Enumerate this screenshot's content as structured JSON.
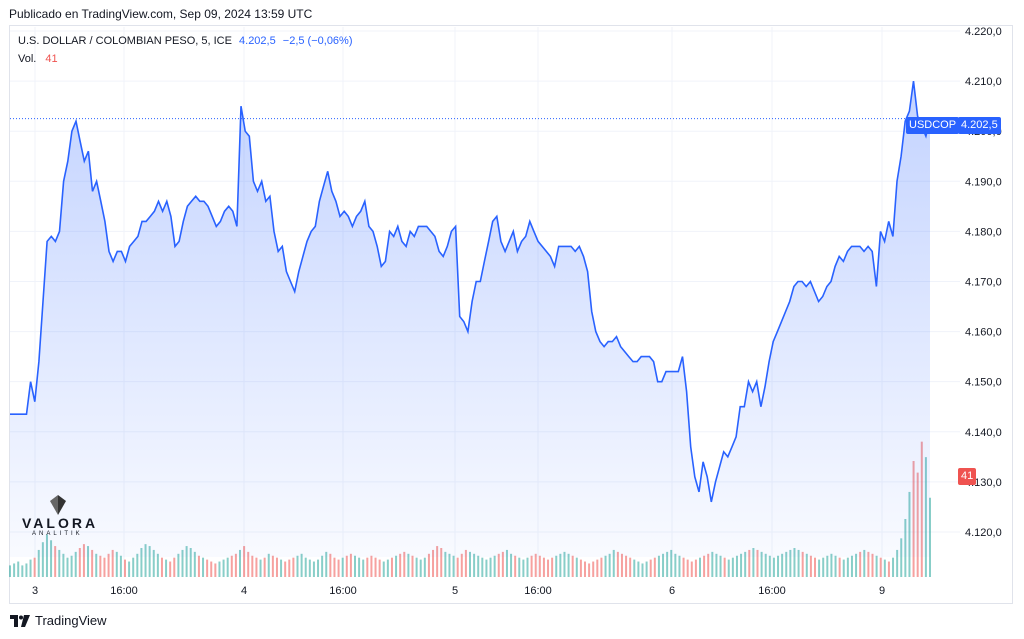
{
  "published": "Publicado en TradingView.com, Sep 09, 2024 13:59 UTC",
  "legend": {
    "symbol": "U.S. DOLLAR / COLOMBIAN PESO, 5, ICE",
    "price": "4.202,5",
    "change": "−2,5 (−0,06%)",
    "vol_label": "Vol.",
    "vol_value": "41"
  },
  "badges": {
    "symbol": "USDCOP",
    "price": "4.202,5",
    "volume": "41"
  },
  "watermark": {
    "name": "VALORA",
    "sub": "ANALITIK"
  },
  "footer": {
    "brand": "TradingView",
    "icon": "tradingview-logo-icon"
  },
  "colors": {
    "line": "#2962ff",
    "vol_up": "#26a69a",
    "vol_down": "#ef5350",
    "price_badge": "#2962ff",
    "vol_badge": "#ef5350"
  },
  "chart_data": {
    "type": "area",
    "series": [
      {
        "values": [
          4143.5,
          4143.5,
          4143.5,
          4143.5,
          4143.5,
          4150,
          4146,
          4154,
          4166,
          4178,
          4179,
          4178,
          4180,
          4190,
          4194,
          4200,
          4202,
          4198,
          4194,
          4196,
          4188,
          4190,
          4186,
          4182,
          4176,
          4174,
          4176,
          4176,
          4174,
          4177,
          4178,
          4179,
          4182,
          4182,
          4183,
          4184,
          4186,
          4184,
          4186,
          4183,
          4177,
          4178,
          4182,
          4185,
          4186,
          4187,
          4186,
          4186,
          4185,
          4183,
          4181,
          4182,
          4184,
          4185,
          4184,
          4181,
          4205,
          4200,
          4199,
          4190,
          4188,
          4190,
          4186,
          4187,
          4180,
          4176,
          4177,
          4172,
          4170,
          4168,
          4172,
          4175,
          4178,
          4180,
          4181,
          4186,
          4189,
          4192,
          4188,
          4186,
          4183,
          4184,
          4183,
          4181,
          4183,
          4184,
          4186,
          4181,
          4180,
          4177,
          4173,
          4174,
          4180,
          4179,
          4181,
          4178,
          4177,
          4180,
          4179,
          4181,
          4181,
          4181,
          4180,
          4179,
          4176,
          4175,
          4177,
          4180,
          4181,
          4163,
          4162,
          4160,
          4166,
          4170,
          4170,
          4174,
          4178,
          4182,
          4183,
          4178,
          4176,
          4178,
          4180,
          4176,
          4178,
          4179,
          4182,
          4180,
          4178,
          4177,
          4176,
          4175,
          4173,
          4177,
          4177,
          4177,
          4177,
          4176,
          4177,
          4175,
          4172,
          4164,
          4160,
          4158,
          4157,
          4158,
          4158,
          4159,
          4157,
          4156,
          4155,
          4154,
          4154,
          4155,
          4155,
          4155,
          4154,
          4150,
          4150,
          4152,
          4152,
          4152,
          4152,
          4155,
          4148,
          4137,
          4131,
          4128,
          4134,
          4131,
          4126,
          4130,
          4133,
          4136,
          4135,
          4137,
          4139,
          4145,
          4145,
          4150,
          4148,
          4150,
          4145,
          4149,
          4154,
          4158,
          4160,
          4162,
          4164,
          4166,
          4169,
          4170,
          4170,
          4169,
          4170,
          4168,
          4166,
          4167,
          4169,
          4170,
          4173,
          4175,
          4174,
          4176,
          4177,
          4177,
          4177,
          4176,
          4177,
          4176,
          4169,
          4180,
          4178,
          4182,
          4179,
          4190,
          4195,
          4202,
          4204,
          4210,
          4203,
          4201,
          4199,
          4202.5
        ]
      }
    ],
    "x_ticks": [
      "3",
      "16:00",
      "4",
      "16:00",
      "5",
      "16:00",
      "6",
      "16:00",
      "9"
    ],
    "y_ticks": [
      "4.220,0",
      "4.210,0",
      "4.200,0",
      "4.190,0",
      "4.180,0",
      "4.170,0",
      "4.160,0",
      "4.150,0",
      "4.140,0",
      "4.130,0",
      "4.120,0"
    ],
    "ylim": [
      4115,
      4220
    ],
    "last_value": 4202.5,
    "volume": [
      {
        "values": [
          6,
          7,
          8,
          6,
          7,
          9,
          10,
          14,
          18,
          22,
          19,
          16,
          14,
          12,
          10,
          11,
          13,
          15,
          17,
          16,
          14,
          12,
          11,
          10,
          12,
          14,
          13,
          11,
          9,
          8,
          10,
          12,
          15,
          17,
          16,
          14,
          12,
          10,
          9,
          8,
          10,
          12,
          14,
          16,
          15,
          13,
          11,
          10,
          9,
          8,
          7,
          8,
          9,
          10,
          11,
          12,
          14,
          16,
          13,
          11,
          10,
          9,
          10,
          12,
          11,
          10,
          9,
          8,
          9,
          10,
          11,
          12,
          10,
          9,
          8,
          9,
          11,
          13,
          12,
          10,
          9,
          10,
          11,
          12,
          11,
          10,
          9,
          10,
          11,
          10,
          9,
          8,
          9,
          10,
          11,
          12,
          13,
          12,
          11,
          10,
          9,
          10,
          12,
          14,
          16,
          15,
          13,
          12,
          11,
          10,
          12,
          14,
          13,
          12,
          11,
          10,
          9,
          10,
          11,
          12,
          13,
          14,
          12,
          11,
          10,
          9,
          10,
          11,
          12,
          11,
          10,
          9,
          10,
          11,
          12,
          13,
          12,
          11,
          10,
          9,
          8,
          7,
          8,
          9,
          10,
          11,
          12,
          14,
          13,
          12,
          11,
          10,
          9,
          8,
          7,
          8,
          9,
          10,
          11,
          12,
          13,
          14,
          12,
          11,
          10,
          9,
          8,
          9,
          10,
          11,
          12,
          13,
          12,
          11,
          10,
          9,
          10,
          11,
          12,
          13,
          14,
          15,
          14,
          13,
          12,
          11,
          10,
          11,
          12,
          13,
          14,
          15,
          14,
          13,
          12,
          11,
          10,
          9,
          10,
          11,
          12,
          11,
          10,
          9,
          10,
          11,
          12,
          13,
          14,
          13,
          12,
          11,
          10,
          9,
          8,
          10,
          14,
          20,
          30,
          44,
          60,
          54,
          70,
          62,
          41
        ]
      }
    ]
  }
}
